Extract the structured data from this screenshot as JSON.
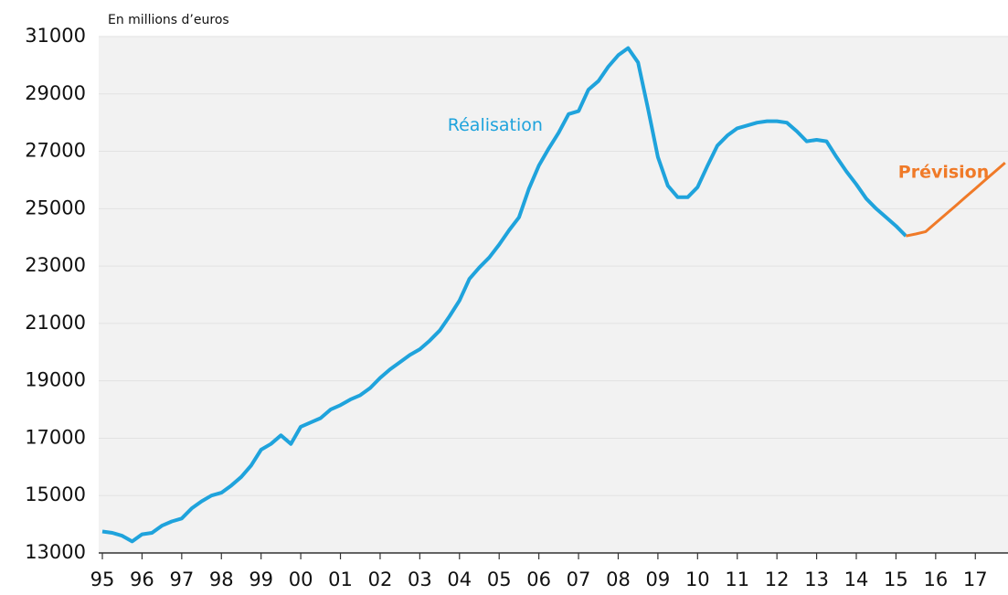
{
  "chart_data": {
    "type": "line",
    "ylabel": "En millions d’euros",
    "annotations": [
      {
        "text": "Réalisation",
        "x": 2004.9,
        "y": 27900,
        "color": "#1fa3dc"
      },
      {
        "text": "Prévision",
        "x": 2016.2,
        "y": 26250,
        "color": "#f07a28"
      }
    ],
    "x": [
      1995,
      1995.25,
      1995.5,
      1995.75,
      1996,
      1996.25,
      1996.5,
      1996.75,
      1997,
      1997.25,
      1997.5,
      1997.75,
      1998,
      1998.25,
      1998.5,
      1998.75,
      1999,
      1999.25,
      1999.5,
      1999.75,
      2000,
      2000.25,
      2000.5,
      2000.75,
      2001,
      2001.25,
      2001.5,
      2001.75,
      2002,
      2002.25,
      2002.5,
      2002.75,
      2003,
      2003.25,
      2003.5,
      2003.75,
      2004,
      2004.25,
      2004.5,
      2004.75,
      2005,
      2005.25,
      2005.5,
      2005.75,
      2006,
      2006.25,
      2006.5,
      2006.75,
      2007,
      2007.25,
      2007.5,
      2007.75,
      2008,
      2008.25,
      2008.5,
      2008.75,
      2009,
      2009.25,
      2009.5,
      2009.75,
      2010,
      2010.25,
      2010.5,
      2010.75,
      2011,
      2011.25,
      2011.5,
      2011.75,
      2012,
      2012.25,
      2012.5,
      2012.75,
      2013,
      2013.25,
      2013.5,
      2013.75,
      2014,
      2014.25,
      2014.5,
      2014.75,
      2015,
      2015.25,
      2015.5,
      2015.75,
      2016,
      2016.25,
      2016.5,
      2016.75,
      2017,
      2017.25,
      2017.5,
      2017.75
    ],
    "series": [
      {
        "name": "Réalisation",
        "color": "#1fa3dc",
        "values": [
          13750,
          13700,
          13600,
          13400,
          13650,
          13700,
          13950,
          14100,
          14200,
          14550,
          14800,
          15000,
          15100,
          15350,
          15650,
          16050,
          16600,
          16800,
          17100,
          16800,
          17400,
          17550,
          17700,
          18000,
          18150,
          18350,
          18500,
          18750,
          19100,
          19400,
          19650,
          19900,
          20100,
          20400,
          20750,
          21250,
          21800,
          22550,
          22950,
          23300,
          23750,
          24250,
          24700,
          25700,
          26500,
          27100,
          27650,
          28300,
          28400,
          29150,
          29450,
          29950,
          30350,
          30600,
          30100,
          28500,
          26800,
          25800,
          25400,
          25400,
          25750,
          26500,
          27200,
          27550,
          27800,
          27900,
          28000,
          28050,
          28050,
          28000,
          27700,
          27350,
          27400,
          27350,
          26800,
          26300,
          25850,
          25350,
          25000,
          24700,
          24400,
          24050,
          null,
          null,
          null,
          null,
          null,
          null,
          null,
          null,
          null,
          null
        ]
      },
      {
        "name": "Prévision",
        "color": "#f07a28",
        "values": [
          null,
          null,
          null,
          null,
          null,
          null,
          null,
          null,
          null,
          null,
          null,
          null,
          null,
          null,
          null,
          null,
          null,
          null,
          null,
          null,
          null,
          null,
          null,
          null,
          null,
          null,
          null,
          null,
          null,
          null,
          null,
          null,
          null,
          null,
          null,
          null,
          null,
          null,
          null,
          null,
          null,
          null,
          null,
          null,
          null,
          null,
          null,
          null,
          null,
          null,
          null,
          null,
          null,
          null,
          null,
          null,
          null,
          null,
          null,
          null,
          null,
          null,
          null,
          null,
          null,
          null,
          null,
          null,
          null,
          null,
          null,
          null,
          null,
          null,
          null,
          null,
          null,
          null,
          null,
          null,
          null,
          24050,
          24120,
          24200,
          24500,
          24800,
          25100,
          25400,
          25700,
          26000,
          26300,
          26600
        ]
      }
    ],
    "xlim": [
      1995,
      2017.8
    ],
    "xticks": [
      {
        "value": 1995,
        "label": "95"
      },
      {
        "value": 1996,
        "label": "96"
      },
      {
        "value": 1997,
        "label": "97"
      },
      {
        "value": 1998,
        "label": "98"
      },
      {
        "value": 1999,
        "label": "99"
      },
      {
        "value": 2000,
        "label": "00"
      },
      {
        "value": 2001,
        "label": "01"
      },
      {
        "value": 2002,
        "label": "02"
      },
      {
        "value": 2003,
        "label": "03"
      },
      {
        "value": 2004,
        "label": "04"
      },
      {
        "value": 2005,
        "label": "05"
      },
      {
        "value": 2006,
        "label": "06"
      },
      {
        "value": 2007,
        "label": "07"
      },
      {
        "value": 2008,
        "label": "08"
      },
      {
        "value": 2009,
        "label": "09"
      },
      {
        "value": 2010,
        "label": "10"
      },
      {
        "value": 2011,
        "label": "11"
      },
      {
        "value": 2012,
        "label": "12"
      },
      {
        "value": 2013,
        "label": "13"
      },
      {
        "value": 2014,
        "label": "14"
      },
      {
        "value": 2015,
        "label": "15"
      },
      {
        "value": 2016,
        "label": "16"
      },
      {
        "value": 2017,
        "label": "17"
      }
    ],
    "ylim": [
      13000,
      31000
    ],
    "yticks": [
      13000,
      15000,
      17000,
      19000,
      21000,
      23000,
      25000,
      27000,
      29000,
      31000
    ],
    "grid": true
  }
}
